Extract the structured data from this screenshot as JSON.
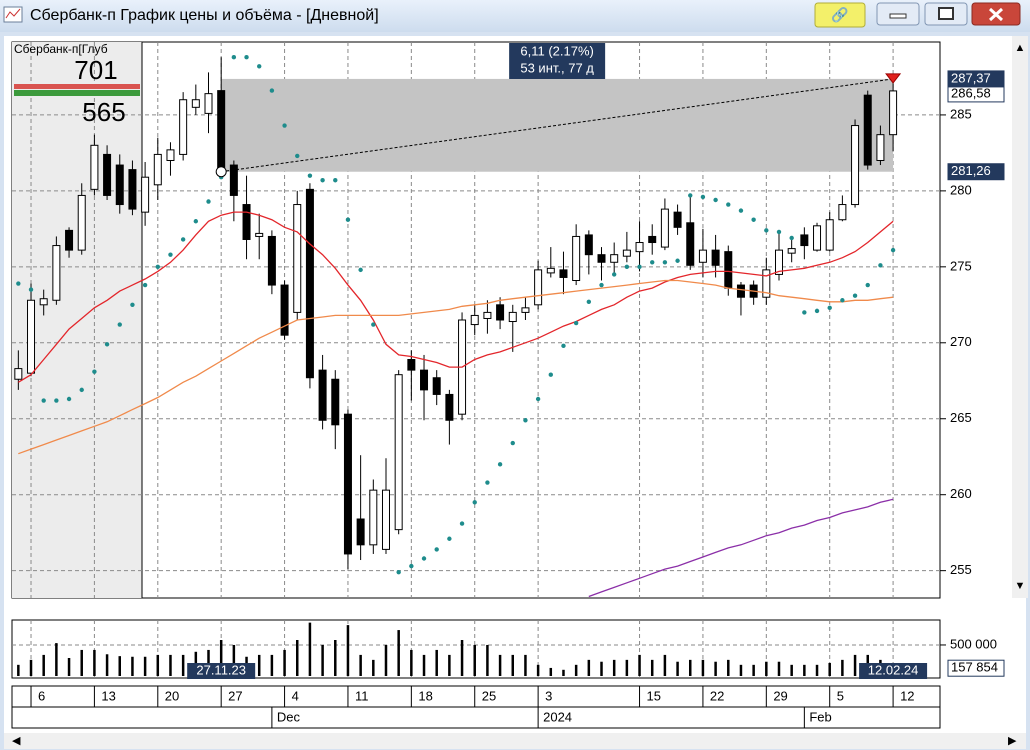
{
  "window": {
    "title": "Сбербанк-п График цены и объёма - [Дневной]"
  },
  "depth": {
    "title": "Сбербанк-п[Глуб",
    "ask": "701",
    "bid": "565"
  },
  "chart_data": {
    "type": "candlestick",
    "open": [
      267.6,
      268.0,
      272.5,
      272.8,
      277.4,
      276.1,
      280.1,
      282.4,
      281.7,
      281.4,
      278.6,
      280.4,
      282.0,
      282.4,
      285.5,
      285.1,
      286.6,
      281.7,
      279.1,
      277.0,
      277.0,
      273.8,
      272.0,
      280.1,
      268.2,
      267.6,
      265.3,
      258.4,
      256.7,
      256.4,
      257.7,
      268.9,
      268.2,
      267.7,
      266.6,
      265.3,
      271.2,
      271.6,
      272.5,
      271.4,
      272.0,
      272.5,
      274.6,
      274.8,
      274.1,
      277.1,
      275.8,
      275.3,
      275.7,
      276.0,
      277.0,
      276.3,
      278.6,
      277.9,
      275.3,
      276.1,
      276.0,
      273.8,
      273.8,
      273.0,
      274.5,
      275.9,
      277.1,
      276.1,
      276.1,
      278.1,
      279.1,
      286.3,
      282.0,
      283.7
    ],
    "high": [
      269.5,
      273.9,
      273.5,
      277.0,
      277.6,
      280.5,
      283.7,
      283.0,
      282.4,
      282.0,
      281.9,
      283.5,
      283.2,
      286.5,
      287.0,
      287.8,
      288.8,
      282.0,
      281.0,
      278.5,
      277.4,
      274.1,
      280.0,
      280.5,
      269.2,
      268.2,
      265.6,
      262.6,
      261.0,
      262.4,
      268.2,
      269.5,
      269.2,
      268.2,
      266.9,
      272.0,
      272.5,
      272.8,
      273.0,
      272.5,
      273.0,
      275.4,
      276.3,
      276.0,
      277.8,
      277.4,
      276.3,
      276.6,
      277.3,
      278.0,
      277.8,
      279.5,
      279.1,
      279.7,
      277.5,
      277.1,
      276.4,
      274.0,
      274.1,
      275.6,
      277.4,
      277.0,
      277.6,
      277.9,
      278.6,
      279.7,
      284.7,
      286.6,
      284.3,
      287.37
    ],
    "low": [
      266.9,
      267.8,
      271.8,
      272.5,
      275.6,
      275.8,
      279.7,
      279.4,
      278.5,
      278.4,
      277.7,
      279.4,
      281.0,
      282.0,
      285.0,
      283.8,
      281.0,
      278.0,
      275.5,
      275.5,
      273.2,
      270.2,
      271.5,
      267.0,
      264.3,
      263.0,
      255.1,
      255.7,
      256.1,
      256.1,
      257.4,
      266.2,
      264.9,
      265.9,
      263.3,
      264.9,
      270.5,
      270.6,
      270.9,
      269.4,
      271.5,
      272.2,
      274.3,
      273.2,
      273.8,
      274.5,
      274.1,
      274.6,
      275.3,
      274.7,
      275.8,
      276.1,
      277.1,
      274.8,
      274.3,
      274.3,
      273.1,
      271.8,
      272.5,
      272.5,
      274.1,
      275.3,
      275.5,
      276.0,
      276.0,
      278.0,
      278.9,
      281.4,
      281.7,
      282.6
    ],
    "close": [
      268.3,
      272.8,
      272.9,
      276.4,
      276.1,
      279.7,
      283.0,
      279.7,
      279.1,
      278.8,
      280.9,
      282.4,
      282.7,
      286.0,
      286.0,
      286.4,
      281.5,
      279.7,
      276.8,
      277.2,
      273.8,
      270.5,
      279.1,
      267.7,
      264.9,
      264.6,
      256.1,
      256.7,
      260.3,
      260.3,
      267.9,
      268.2,
      266.9,
      266.6,
      264.9,
      271.5,
      271.8,
      272.0,
      271.5,
      272.0,
      272.3,
      274.8,
      274.9,
      274.3,
      277.0,
      275.8,
      275.3,
      275.8,
      276.1,
      276.6,
      276.6,
      278.8,
      277.6,
      275.1,
      276.1,
      275.1,
      273.6,
      273.0,
      273.0,
      274.8,
      276.1,
      276.2,
      276.4,
      277.7,
      278.1,
      279.1,
      284.3,
      281.7,
      283.7,
      286.58
    ],
    "colors": {
      "up": "#ffffff",
      "down": "#000000"
    },
    "lines": [
      {
        "color": "#e3262b",
        "values": [
          267.4,
          267.9,
          268.9,
          269.9,
          270.9,
          271.6,
          272.3,
          272.8,
          273.4,
          273.8,
          274.2,
          274.7,
          275.3,
          276.1,
          277.1,
          278.0,
          278.4,
          278.6,
          278.6,
          278.4,
          278.1,
          277.6,
          277.3,
          276.5,
          275.8,
          274.9,
          273.8,
          272.8,
          271.5,
          269.9,
          269.2,
          269.1,
          268.9,
          268.7,
          268.4,
          268.4,
          268.9,
          269.2,
          269.4,
          269.7,
          270.0,
          270.3,
          270.7,
          271.1,
          271.4,
          271.8,
          272.2,
          272.5,
          273.0,
          273.4,
          273.6,
          274.0,
          274.3,
          274.5,
          274.6,
          274.7,
          274.7,
          274.6,
          274.5,
          274.4,
          274.7,
          274.8,
          274.9,
          275.1,
          275.3,
          275.6,
          276.0,
          276.6,
          277.3,
          278.0
        ]
      },
      {
        "color": "#f08a4b",
        "values": [
          262.7,
          263.0,
          263.3,
          263.6,
          263.9,
          264.2,
          264.5,
          264.8,
          265.2,
          265.6,
          266.0,
          266.4,
          266.9,
          267.4,
          267.8,
          268.3,
          268.8,
          269.3,
          269.8,
          270.3,
          270.7,
          271.1,
          271.5,
          271.6,
          271.7,
          271.8,
          271.8,
          271.8,
          271.8,
          271.8,
          271.8,
          271.9,
          272.0,
          272.1,
          272.2,
          272.4,
          272.5,
          272.6,
          272.8,
          272.9,
          273.0,
          273.1,
          273.2,
          273.3,
          273.4,
          273.5,
          273.6,
          273.7,
          273.8,
          273.9,
          274.0,
          274.1,
          274.1,
          274.0,
          273.9,
          273.8,
          273.6,
          273.5,
          273.4,
          273.3,
          273.1,
          273.0,
          272.9,
          272.8,
          272.7,
          272.7,
          272.8,
          272.8,
          272.9,
          273.0
        ]
      },
      {
        "color": "#8b2fa8",
        "values": [
          null,
          null,
          null,
          null,
          null,
          null,
          null,
          null,
          null,
          null,
          null,
          null,
          null,
          null,
          null,
          null,
          null,
          null,
          null,
          null,
          null,
          null,
          null,
          null,
          null,
          null,
          null,
          null,
          null,
          null,
          null,
          null,
          null,
          null,
          null,
          null,
          null,
          null,
          null,
          null,
          null,
          null,
          null,
          null,
          null,
          253.3,
          253.6,
          253.9,
          254.2,
          254.5,
          254.8,
          255.1,
          255.3,
          255.6,
          255.9,
          256.2,
          256.5,
          256.7,
          257.0,
          257.3,
          257.5,
          257.8,
          258.0,
          258.3,
          258.5,
          258.8,
          259.0,
          259.2,
          259.5,
          259.7
        ]
      }
    ],
    "sar": {
      "color": "#1e8c8c",
      "values": [
        273.9,
        273.5,
        266.2,
        266.2,
        266.3,
        266.9,
        268.1,
        269.9,
        271.2,
        272.5,
        273.8,
        275.0,
        275.8,
        276.8,
        278.0,
        279.3,
        280.9,
        288.8,
        288.8,
        288.2,
        286.6,
        284.3,
        282.3,
        281.0,
        280.7,
        280.7,
        278.1,
        274.8,
        271.2,
        null,
        254.9,
        255.3,
        255.8,
        256.4,
        257.1,
        258.1,
        259.5,
        260.8,
        262.0,
        263.4,
        264.9,
        266.3,
        267.9,
        269.8,
        271.3,
        272.7,
        273.8,
        274.5,
        275.0,
        275.0,
        275.3,
        275.3,
        275.4,
        279.7,
        279.6,
        279.4,
        279.1,
        278.7,
        278.1,
        277.4,
        277.3,
        276.9,
        272.0,
        272.1,
        272.3,
        272.8,
        273.1,
        273.8,
        275.1,
        276.1
      ]
    },
    "xlim": [
      -0.5,
      72.7
    ],
    "xticks": [
      {
        "value": 1,
        "label": "6"
      },
      {
        "value": 6,
        "label": "13"
      },
      {
        "value": 11,
        "label": "20"
      },
      {
        "value": 16,
        "label": "27"
      },
      {
        "value": 21,
        "label": "4"
      },
      {
        "value": 26,
        "label": "11"
      },
      {
        "value": 31,
        "label": "18"
      },
      {
        "value": 36,
        "label": "25"
      },
      {
        "value": 41,
        "label": "3"
      },
      {
        "value": 49,
        "label": "15"
      },
      {
        "value": 54,
        "label": "22"
      },
      {
        "value": 59,
        "label": "29"
      },
      {
        "value": 64,
        "label": "5"
      },
      {
        "value": 69,
        "label": "12"
      }
    ],
    "month_ticks": [
      {
        "value": 20,
        "label": "Dec"
      },
      {
        "value": 41,
        "label": "2024"
      },
      {
        "value": 62,
        "label": "Feb"
      }
    ],
    "ylim": [
      253.2,
      289.8
    ],
    "yticks": [
      255,
      260,
      265,
      270,
      275,
      280,
      285
    ],
    "grid": true,
    "range_measure": {
      "start": 16,
      "end": 69,
      "from": {
        "value": 281.26,
        "label": "281,26"
      },
      "to": {
        "value": 287.37,
        "label": "287,37"
      },
      "text": [
        "6,11 (2.17%)",
        "53 инт., 77 д"
      ]
    },
    "last_price": {
      "value": 286.58,
      "label": "286,58"
    },
    "start_date_label": "27.11.23",
    "end_date_label": "12.02.24",
    "volume": {
      "color": "#000000",
      "values": [
        180000,
        260000,
        340000,
        530000,
        290000,
        420000,
        420000,
        350000,
        320000,
        310000,
        310000,
        340000,
        340000,
        340000,
        390000,
        420000,
        580000,
        500000,
        310000,
        340000,
        340000,
        420000,
        580000,
        860000,
        500000,
        580000,
        820000,
        340000,
        260000,
        500000,
        740000,
        420000,
        340000,
        420000,
        340000,
        580000,
        500000,
        500000,
        340000,
        340000,
        340000,
        180000,
        130000,
        100000,
        180000,
        260000,
        230000,
        260000,
        260000,
        340000,
        260000,
        340000,
        230000,
        260000,
        260000,
        230000,
        260000,
        180000,
        180000,
        230000,
        230000,
        180000,
        180000,
        180000,
        210000,
        260000,
        340000,
        340000,
        260000,
        157854
      ],
      "ylim": [
        0,
        870000
      ],
      "yticks": [
        {
          "value": 500000,
          "label": "500 000"
        }
      ],
      "last": {
        "value": 157854,
        "label": "157 854"
      }
    }
  }
}
